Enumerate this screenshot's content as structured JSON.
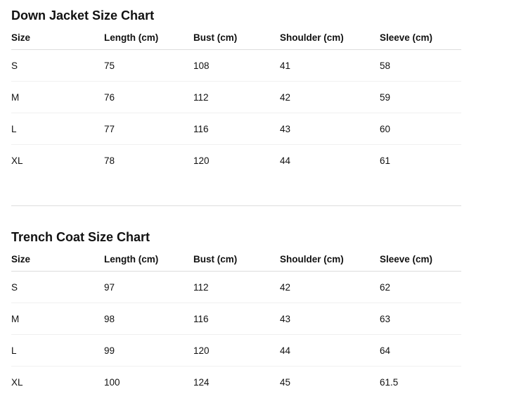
{
  "charts": [
    {
      "title": "Down Jacket Size Chart",
      "headers": [
        "Size",
        "Length (cm)",
        "Bust (cm)",
        "Shoulder (cm)",
        "Sleeve (cm)"
      ],
      "rows": [
        [
          "S",
          "75",
          "108",
          "41",
          "58"
        ],
        [
          "M",
          "76",
          "112",
          "42",
          "59"
        ],
        [
          "L",
          "77",
          "116",
          "43",
          "60"
        ],
        [
          "XL",
          "78",
          "120",
          "44",
          "61"
        ]
      ]
    },
    {
      "title": "Trench Coat Size Chart",
      "headers": [
        "Size",
        "Length (cm)",
        "Bust (cm)",
        "Shoulder (cm)",
        "Sleeve (cm)"
      ],
      "rows": [
        [
          "S",
          "97",
          "112",
          "42",
          "62"
        ],
        [
          "M",
          "98",
          "116",
          "43",
          "63"
        ],
        [
          "L",
          "99",
          "120",
          "44",
          "64"
        ],
        [
          "XL",
          "100",
          "124",
          "45",
          "61.5"
        ]
      ]
    }
  ]
}
